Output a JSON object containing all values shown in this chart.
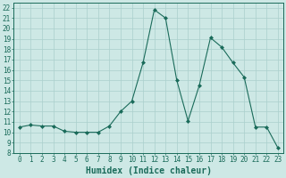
{
  "x": [
    0,
    1,
    2,
    3,
    4,
    5,
    6,
    7,
    8,
    9,
    10,
    11,
    12,
    13,
    14,
    15,
    16,
    17,
    18,
    19,
    20,
    21,
    22,
    23
  ],
  "y": [
    10.5,
    10.7,
    10.6,
    10.6,
    10.1,
    10.0,
    10.0,
    10.0,
    10.6,
    12.0,
    13.0,
    16.7,
    21.8,
    21.0,
    15.0,
    11.1,
    14.5,
    19.1,
    18.2,
    16.7,
    15.3,
    10.5,
    10.5,
    8.5
  ],
  "line_color": "#1a6b5a",
  "marker": "D",
  "markersize": 2.0,
  "linewidth": 0.8,
  "bg_color": "#cde8e5",
  "grid_color": "#aacfcc",
  "xlabel": "Humidex (Indice chaleur)",
  "xlim": [
    -0.5,
    23.5
  ],
  "ylim": [
    8,
    22.5
  ],
  "yticks": [
    8,
    9,
    10,
    11,
    12,
    13,
    14,
    15,
    16,
    17,
    18,
    19,
    20,
    21,
    22
  ],
  "xticks": [
    0,
    1,
    2,
    3,
    4,
    5,
    6,
    7,
    8,
    9,
    10,
    11,
    12,
    13,
    14,
    15,
    16,
    17,
    18,
    19,
    20,
    21,
    22,
    23
  ],
  "tick_fontsize": 5.5,
  "xlabel_fontsize": 7.0,
  "axis_color": "#1a6b5a"
}
